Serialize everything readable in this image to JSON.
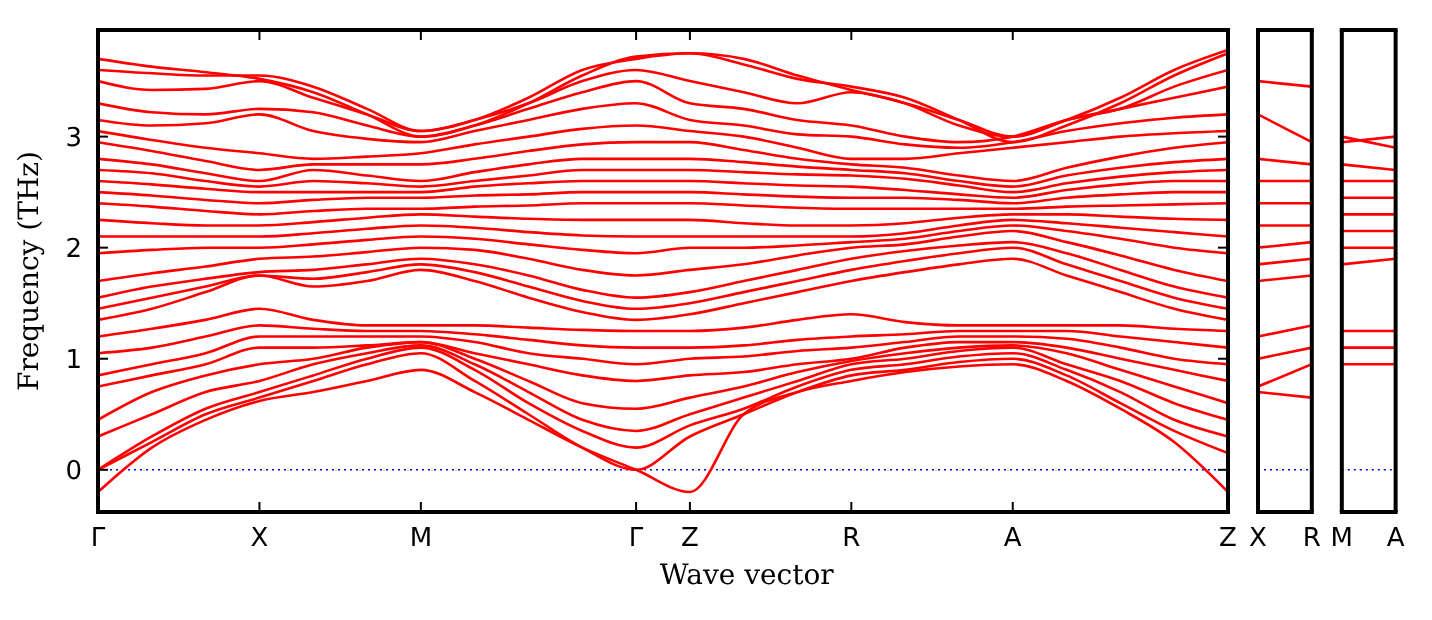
{
  "chart_data": [
    {
      "type": "line",
      "xlabel": "Wave vector",
      "ylabel": "Frequency (THz)",
      "categories": [
        "Γ",
        null,
        null,
        "X",
        null,
        null,
        "M",
        null,
        null,
        null,
        "Γ",
        "Z",
        null,
        null,
        "R",
        null,
        null,
        "A",
        null,
        null,
        null,
        "Z"
      ],
      "ylim": [
        -0.38,
        3.96
      ],
      "yticks": [
        0,
        1,
        2,
        3
      ],
      "ref_lines": [
        {
          "axis": "y",
          "value": 0,
          "color": "#0000ff",
          "line_style": "dotted"
        }
      ],
      "marker": "none",
      "series": [
        {
          "color": "#ff0000",
          "values": [
            -0.2,
            0.2,
            0.45,
            0.62,
            0.7,
            0.8,
            0.9,
            0.7,
            0.45,
            0.2,
            0,
            -0.2,
            0.5,
            0.7,
            0.8,
            0.88,
            0.93,
            0.95,
            0.8,
            0.55,
            0.25,
            -0.2
          ]
        },
        {
          "color": "#ff0000",
          "values": [
            0,
            0.25,
            0.5,
            0.65,
            0.8,
            0.95,
            1.05,
            0.8,
            0.5,
            0.2,
            0,
            0.3,
            0.5,
            0.7,
            0.85,
            0.9,
            0.97,
            1.0,
            0.85,
            0.6,
            0.35,
            0.15
          ]
        },
        {
          "color": "#ff0000",
          "values": [
            0,
            0.3,
            0.55,
            0.7,
            0.85,
            1.0,
            1.1,
            0.9,
            0.6,
            0.35,
            0.2,
            0.4,
            0.55,
            0.75,
            0.9,
            0.95,
            1.02,
            1.05,
            0.9,
            0.7,
            0.45,
            0.3
          ]
        },
        {
          "color": "#ff0000",
          "values": [
            0.3,
            0.5,
            0.7,
            0.8,
            0.95,
            1.05,
            1.12,
            0.95,
            0.7,
            0.45,
            0.35,
            0.5,
            0.65,
            0.8,
            0.95,
            1.0,
            1.07,
            1.1,
            0.95,
            0.8,
            0.6,
            0.45
          ]
        },
        {
          "color": "#ff0000",
          "values": [
            0.45,
            0.7,
            0.85,
            0.95,
            1.0,
            1.1,
            1.15,
            1.0,
            0.8,
            0.6,
            0.55,
            0.65,
            0.75,
            0.88,
            0.98,
            1.05,
            1.1,
            1.12,
            1.05,
            0.9,
            0.75,
            0.6
          ]
        },
        {
          "color": "#ff0000",
          "values": [
            0.75,
            0.85,
            0.95,
            1.1,
            1.1,
            1.12,
            1.15,
            1.05,
            0.95,
            0.85,
            0.8,
            0.85,
            0.88,
            0.95,
            1.0,
            1.1,
            1.15,
            1.15,
            1.1,
            1.0,
            0.9,
            0.8
          ]
        },
        {
          "color": "#ff0000",
          "values": [
            0.85,
            0.95,
            1.05,
            1.2,
            1.2,
            1.2,
            1.2,
            1.15,
            1.05,
            1.0,
            0.95,
            1.0,
            1.02,
            1.07,
            1.1,
            1.15,
            1.2,
            1.2,
            1.18,
            1.1,
            1.0,
            0.95
          ]
        },
        {
          "color": "#ff0000",
          "values": [
            1.05,
            1.1,
            1.2,
            1.3,
            1.27,
            1.25,
            1.25,
            1.22,
            1.17,
            1.12,
            1.1,
            1.1,
            1.12,
            1.17,
            1.2,
            1.22,
            1.25,
            1.25,
            1.25,
            1.2,
            1.15,
            1.1
          ]
        },
        {
          "color": "#ff0000",
          "values": [
            1.2,
            1.27,
            1.35,
            1.45,
            1.35,
            1.3,
            1.3,
            1.3,
            1.28,
            1.26,
            1.25,
            1.25,
            1.28,
            1.35,
            1.4,
            1.33,
            1.3,
            1.3,
            1.3,
            1.3,
            1.27,
            1.25
          ]
        },
        {
          "color": "#ff0000",
          "values": [
            1.35,
            1.45,
            1.6,
            1.75,
            1.65,
            1.7,
            1.8,
            1.7,
            1.55,
            1.42,
            1.35,
            1.4,
            1.5,
            1.6,
            1.7,
            1.78,
            1.85,
            1.9,
            1.75,
            1.6,
            1.45,
            1.35
          ]
        },
        {
          "color": "#ff0000",
          "values": [
            1.45,
            1.55,
            1.65,
            1.75,
            1.72,
            1.78,
            1.85,
            1.78,
            1.65,
            1.52,
            1.45,
            1.5,
            1.6,
            1.7,
            1.8,
            1.88,
            1.95,
            2.0,
            1.85,
            1.7,
            1.55,
            1.45
          ]
        },
        {
          "color": "#ff0000",
          "values": [
            1.55,
            1.65,
            1.72,
            1.78,
            1.8,
            1.85,
            1.9,
            1.85,
            1.75,
            1.62,
            1.55,
            1.6,
            1.7,
            1.8,
            1.9,
            1.97,
            2.02,
            2.05,
            1.95,
            1.8,
            1.65,
            1.55
          ]
        },
        {
          "color": "#ff0000",
          "values": [
            1.7,
            1.77,
            1.83,
            1.9,
            1.92,
            1.96,
            2.0,
            1.98,
            1.9,
            1.8,
            1.75,
            1.8,
            1.85,
            1.93,
            2.0,
            2.03,
            2.1,
            2.15,
            2.05,
            1.93,
            1.8,
            1.7
          ]
        },
        {
          "color": "#ff0000",
          "values": [
            1.95,
            1.98,
            2.0,
            2.0,
            2.03,
            2.07,
            2.1,
            2.08,
            2.03,
            1.98,
            1.95,
            2.0,
            2.0,
            2.02,
            2.05,
            2.08,
            2.15,
            2.2,
            2.15,
            2.08,
            2.0,
            1.95
          ]
        },
        {
          "color": "#ff0000",
          "values": [
            2.1,
            2.1,
            2.1,
            2.1,
            2.13,
            2.17,
            2.2,
            2.18,
            2.14,
            2.11,
            2.1,
            2.1,
            2.1,
            2.1,
            2.1,
            2.13,
            2.2,
            2.25,
            2.22,
            2.18,
            2.14,
            2.1
          ]
        },
        {
          "color": "#ff0000",
          "values": [
            2.25,
            2.22,
            2.2,
            2.2,
            2.23,
            2.27,
            2.3,
            2.28,
            2.26,
            2.25,
            2.25,
            2.25,
            2.22,
            2.2,
            2.2,
            2.22,
            2.27,
            2.3,
            2.3,
            2.28,
            2.26,
            2.25
          ]
        },
        {
          "color": "#ff0000",
          "values": [
            2.4,
            2.37,
            2.33,
            2.3,
            2.33,
            2.35,
            2.35,
            2.37,
            2.38,
            2.4,
            2.4,
            2.4,
            2.38,
            2.36,
            2.35,
            2.35,
            2.35,
            2.35,
            2.37,
            2.38,
            2.39,
            2.4
          ]
        },
        {
          "color": "#ff0000",
          "values": [
            2.5,
            2.47,
            2.43,
            2.4,
            2.43,
            2.45,
            2.45,
            2.47,
            2.48,
            2.5,
            2.5,
            2.5,
            2.48,
            2.46,
            2.45,
            2.45,
            2.43,
            2.4,
            2.45,
            2.48,
            2.5,
            2.5
          ]
        },
        {
          "color": "#ff0000",
          "values": [
            2.6,
            2.57,
            2.53,
            2.5,
            2.5,
            2.5,
            2.5,
            2.55,
            2.58,
            2.6,
            2.6,
            2.6,
            2.58,
            2.56,
            2.55,
            2.52,
            2.48,
            2.45,
            2.52,
            2.57,
            2.6,
            2.6
          ]
        },
        {
          "color": "#ff0000",
          "values": [
            2.7,
            2.67,
            2.6,
            2.55,
            2.6,
            2.58,
            2.55,
            2.6,
            2.65,
            2.7,
            2.7,
            2.7,
            2.68,
            2.66,
            2.65,
            2.62,
            2.56,
            2.5,
            2.58,
            2.64,
            2.68,
            2.7
          ]
        },
        {
          "color": "#ff0000",
          "values": [
            2.8,
            2.75,
            2.67,
            2.6,
            2.7,
            2.65,
            2.6,
            2.68,
            2.75,
            2.8,
            2.8,
            2.8,
            2.77,
            2.73,
            2.7,
            2.67,
            2.6,
            2.55,
            2.65,
            2.72,
            2.77,
            2.8
          ]
        },
        {
          "color": "#ff0000",
          "values": [
            2.95,
            2.87,
            2.78,
            2.7,
            2.75,
            2.75,
            2.75,
            2.8,
            2.87,
            2.93,
            2.95,
            2.95,
            2.88,
            2.8,
            2.75,
            2.72,
            2.65,
            2.6,
            2.72,
            2.82,
            2.9,
            2.95
          ]
        },
        {
          "color": "#ff0000",
          "values": [
            3.05,
            2.97,
            2.9,
            2.85,
            2.8,
            2.82,
            2.85,
            2.93,
            3.0,
            3.07,
            3.1,
            3.05,
            3.0,
            2.9,
            2.8,
            2.8,
            2.85,
            2.9,
            2.95,
            3.0,
            3.03,
            3.05
          ]
        },
        {
          "color": "#ff0000",
          "values": [
            3.15,
            3.1,
            3.12,
            3.2,
            3.05,
            2.98,
            2.95,
            3.05,
            3.15,
            3.25,
            3.3,
            3.15,
            3.1,
            3.02,
            3.0,
            2.93,
            2.9,
            2.95,
            3.05,
            3.12,
            3.17,
            3.2
          ]
        },
        {
          "color": "#ff0000",
          "values": [
            3.3,
            3.22,
            3.2,
            3.25,
            3.22,
            3.1,
            3.0,
            3.1,
            3.25,
            3.4,
            3.5,
            3.3,
            3.25,
            3.15,
            3.1,
            3.0,
            2.95,
            3.0,
            3.15,
            3.25,
            3.35,
            3.45
          ]
        },
        {
          "color": "#ff0000",
          "values": [
            3.5,
            3.42,
            3.43,
            3.5,
            3.35,
            3.2,
            3.05,
            3.15,
            3.3,
            3.5,
            3.6,
            3.5,
            3.4,
            3.3,
            3.4,
            3.3,
            3.15,
            3.0,
            3.15,
            3.25,
            3.45,
            3.6
          ]
        },
        {
          "color": "#ff0000",
          "values": [
            3.6,
            3.57,
            3.55,
            3.55,
            3.45,
            3.25,
            3.05,
            3.15,
            3.35,
            3.6,
            3.7,
            3.75,
            3.65,
            3.52,
            3.45,
            3.35,
            3.15,
            2.95,
            3.1,
            3.3,
            3.55,
            3.75
          ]
        },
        {
          "color": "#ff0000",
          "values": [
            3.7,
            3.63,
            3.58,
            3.52,
            3.4,
            3.2,
            3.0,
            3.1,
            3.3,
            3.55,
            3.72,
            3.75,
            3.7,
            3.55,
            3.42,
            3.3,
            3.1,
            3.0,
            3.15,
            3.35,
            3.6,
            3.78
          ]
        }
      ]
    },
    {
      "type": "line",
      "categories": [
        "X",
        "R"
      ],
      "ylim": [
        -0.38,
        3.96
      ],
      "yticks": [
        0,
        1,
        2,
        3
      ],
      "tick_labels": "x",
      "ref_lines": [
        {
          "axis": "y",
          "value": 0,
          "color": "#0000ff",
          "line_style": "dotted"
        }
      ],
      "marker": "none",
      "series": [
        {
          "color": "#ff0000",
          "values": [
            0.7,
            0.65
          ]
        },
        {
          "color": "#ff0000",
          "values": [
            0.75,
            0.95
          ]
        },
        {
          "color": "#ff0000",
          "values": [
            1.0,
            1.1
          ]
        },
        {
          "color": "#ff0000",
          "values": [
            1.2,
            1.3
          ]
        },
        {
          "color": "#ff0000",
          "values": [
            1.7,
            1.75
          ]
        },
        {
          "color": "#ff0000",
          "values": [
            1.85,
            1.9
          ]
        },
        {
          "color": "#ff0000",
          "values": [
            2.0,
            2.05
          ]
        },
        {
          "color": "#ff0000",
          "values": [
            2.2,
            2.2
          ]
        },
        {
          "color": "#ff0000",
          "values": [
            2.4,
            2.4
          ]
        },
        {
          "color": "#ff0000",
          "values": [
            2.6,
            2.6
          ]
        },
        {
          "color": "#ff0000",
          "values": [
            2.8,
            2.75
          ]
        },
        {
          "color": "#ff0000",
          "values": [
            3.2,
            2.95
          ]
        },
        {
          "color": "#ff0000",
          "values": [
            3.5,
            3.45
          ]
        }
      ]
    },
    {
      "type": "line",
      "categories": [
        "M",
        "A"
      ],
      "ylim": [
        -0.38,
        3.96
      ],
      "yticks": [
        0,
        1,
        2,
        3
      ],
      "tick_labels": "x",
      "ref_lines": [
        {
          "axis": "y",
          "value": 0,
          "color": "#0000ff",
          "line_style": "dotted"
        }
      ],
      "marker": "none",
      "series": [
        {
          "color": "#ff0000",
          "values": [
            0.95,
            0.95
          ]
        },
        {
          "color": "#ff0000",
          "values": [
            1.1,
            1.1
          ]
        },
        {
          "color": "#ff0000",
          "values": [
            1.25,
            1.25
          ]
        },
        {
          "color": "#ff0000",
          "values": [
            1.85,
            1.9
          ]
        },
        {
          "color": "#ff0000",
          "values": [
            2.0,
            2.0
          ]
        },
        {
          "color": "#ff0000",
          "values": [
            2.15,
            2.15
          ]
        },
        {
          "color": "#ff0000",
          "values": [
            2.3,
            2.3
          ]
        },
        {
          "color": "#ff0000",
          "values": [
            2.45,
            2.45
          ]
        },
        {
          "color": "#ff0000",
          "values": [
            2.6,
            2.6
          ]
        },
        {
          "color": "#ff0000",
          "values": [
            2.75,
            2.7
          ]
        },
        {
          "color": "#ff0000",
          "values": [
            2.95,
            3.0
          ]
        },
        {
          "color": "#ff0000",
          "values": [
            3.0,
            2.9
          ]
        }
      ]
    }
  ]
}
